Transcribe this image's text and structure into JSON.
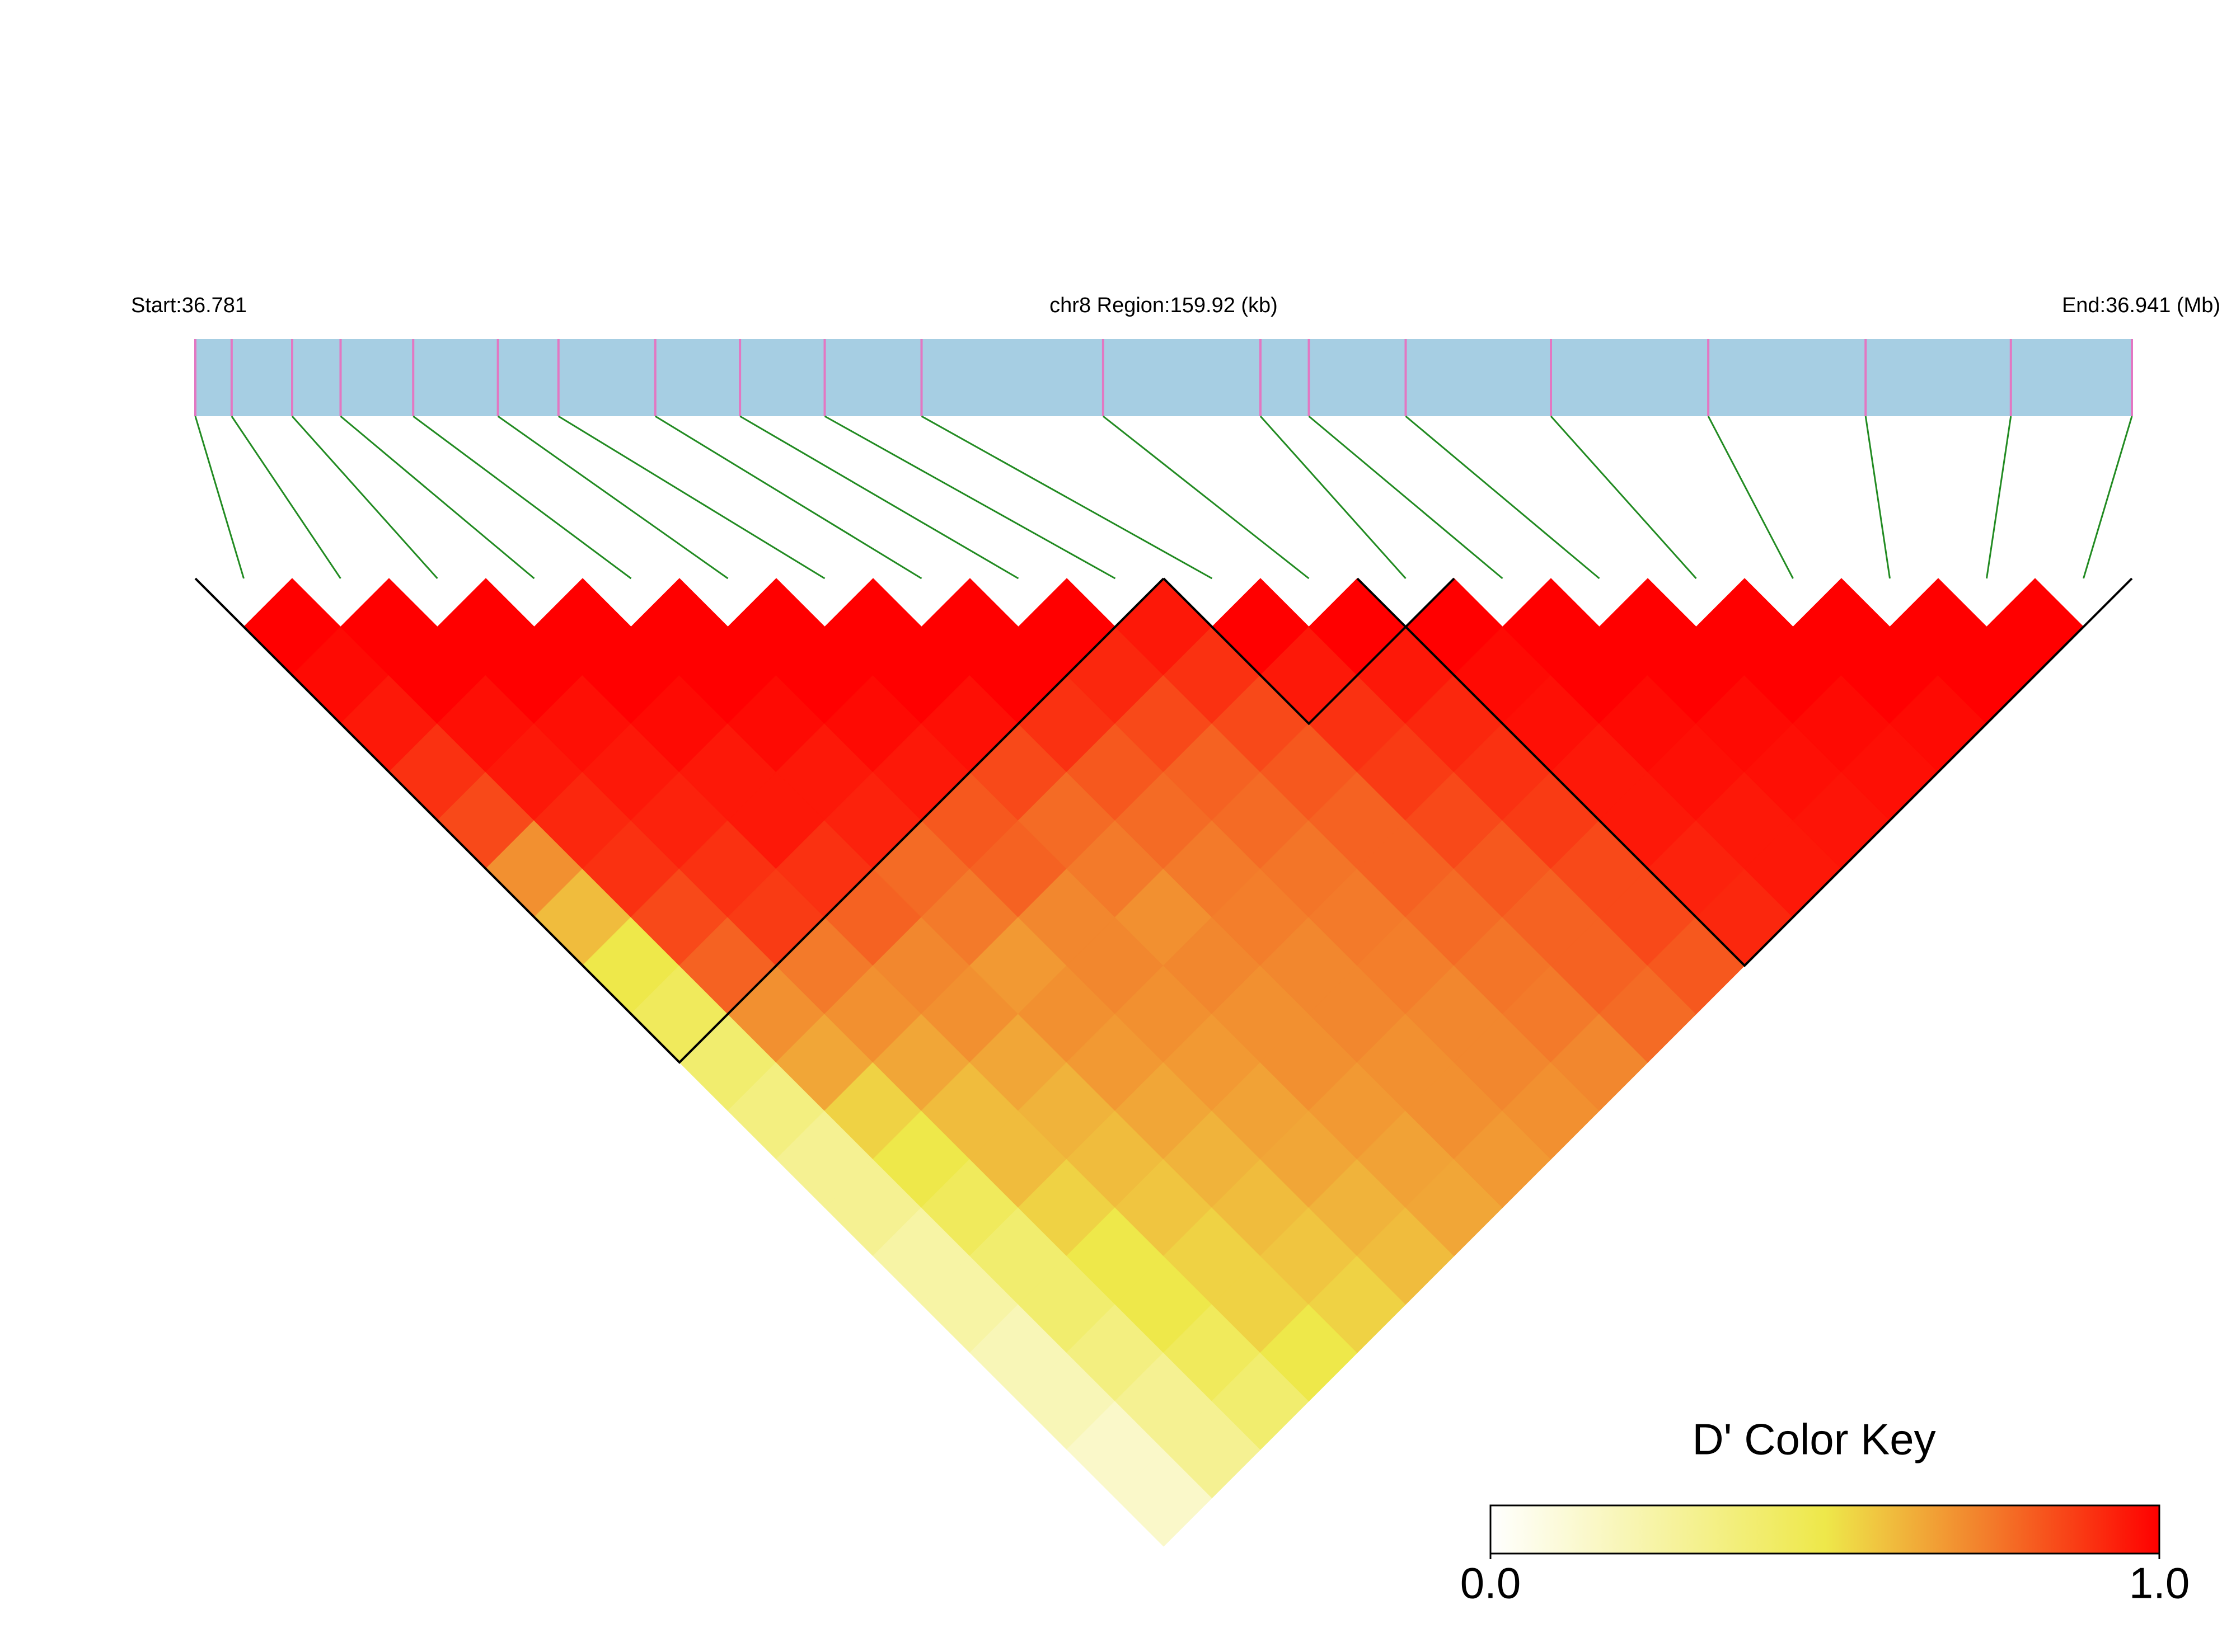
{
  "chart_data": {
    "type": "ld-heatmap",
    "start_label": "Start:36.781",
    "region_label": "chr8 Region:159.92 (kb)",
    "end_label": "End:36.941 (Mb)",
    "xlim": [
      36.781,
      36.941
    ],
    "snp_positions": [
      36.781,
      36.784,
      36.789,
      36.793,
      36.799,
      36.806,
      36.811,
      36.819,
      36.826,
      36.833,
      36.841,
      36.856,
      36.869,
      36.873,
      36.881,
      36.893,
      36.906,
      36.919,
      36.931,
      36.941
    ],
    "dprime": [
      [
        1
      ],
      [
        0.98,
        1
      ],
      [
        0.95,
        1,
        1
      ],
      [
        0.9,
        0.97,
        1,
        1
      ],
      [
        0.85,
        0.95,
        0.97,
        1,
        1
      ],
      [
        0.7,
        0.92,
        0.95,
        0.98,
        1,
        1
      ],
      [
        0.6,
        0.9,
        0.93,
        0.95,
        0.98,
        1,
        1
      ],
      [
        0.5,
        0.85,
        0.9,
        0.95,
        0.95,
        0.98,
        1,
        1
      ],
      [
        0.45,
        0.8,
        0.88,
        0.9,
        0.93,
        0.95,
        0.97,
        1,
        1
      ],
      [
        0.4,
        0.7,
        0.75,
        0.8,
        0.78,
        0.82,
        0.85,
        0.9,
        0.92,
        0.95
      ],
      [
        0.35,
        0.65,
        0.7,
        0.72,
        0.75,
        0.8,
        0.78,
        0.82,
        0.85,
        0.9,
        1
      ],
      [
        0.3,
        0.55,
        0.65,
        0.7,
        0.68,
        0.72,
        0.75,
        0.78,
        0.8,
        0.85,
        0.95,
        1
      ],
      [
        0.3,
        0.5,
        0.6,
        0.65,
        0.7,
        0.72,
        0.7,
        0.75,
        0.78,
        0.82,
        0.9,
        0.95,
        1
      ],
      [
        0.25,
        0.45,
        0.6,
        0.62,
        0.68,
        0.7,
        0.72,
        0.74,
        0.76,
        0.8,
        0.88,
        0.92,
        0.98,
        1
      ],
      [
        0.25,
        0.4,
        0.55,
        0.6,
        0.65,
        0.68,
        0.7,
        0.72,
        0.75,
        0.8,
        0.85,
        0.9,
        0.97,
        1,
        1
      ],
      [
        0.2,
        0.4,
        0.5,
        0.58,
        0.62,
        0.66,
        0.7,
        0.72,
        0.74,
        0.78,
        0.82,
        0.88,
        0.95,
        0.98,
        1,
        1
      ],
      [
        0.2,
        0.35,
        0.5,
        0.55,
        0.6,
        0.65,
        0.68,
        0.7,
        0.72,
        0.76,
        0.8,
        0.85,
        0.95,
        0.97,
        0.98,
        1,
        1
      ],
      [
        0.15,
        0.3,
        0.45,
        0.55,
        0.58,
        0.62,
        0.66,
        0.7,
        0.72,
        0.75,
        0.8,
        0.85,
        0.93,
        0.95,
        0.97,
        0.98,
        1,
        1
      ],
      [
        0.15,
        0.3,
        0.4,
        0.5,
        0.55,
        0.6,
        0.65,
        0.68,
        0.7,
        0.72,
        0.78,
        0.82,
        0.92,
        0.95,
        0.96,
        0.97,
        0.98,
        1,
        1
      ]
    ],
    "blocks": [
      [
        0,
        9
      ],
      [
        10,
        12
      ],
      [
        12,
        19
      ]
    ],
    "colorkey_title": "D' Color Key",
    "colorkey_ticks": [
      {
        "value": 0,
        "label": "0.0"
      },
      {
        "value": 1,
        "label": "1.0"
      }
    ]
  }
}
